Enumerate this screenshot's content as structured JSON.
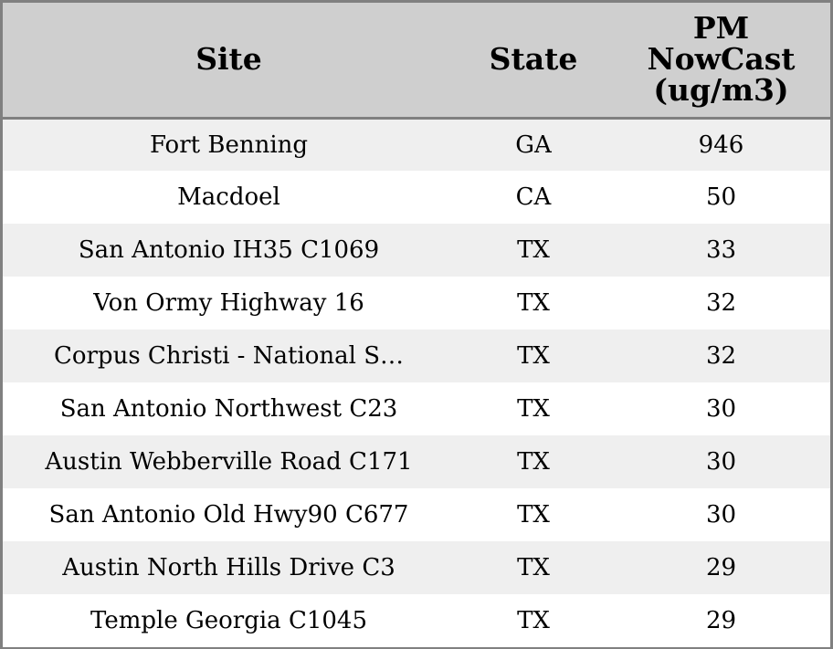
{
  "chart_data": {
    "type": "table",
    "columns": [
      "Site",
      "State",
      "PM NowCast (ug/m3)"
    ],
    "rows": [
      {
        "site": "Fort Benning",
        "state": "GA",
        "pm": 946
      },
      {
        "site": "Macdoel",
        "state": "CA",
        "pm": 50
      },
      {
        "site": "San Antonio IH35 C1069",
        "state": "TX",
        "pm": 33
      },
      {
        "site": "Von Ormy Highway 16",
        "state": "TX",
        "pm": 32
      },
      {
        "site": "Corpus Christi - National S…",
        "state": "TX",
        "pm": 32
      },
      {
        "site": "San Antonio Northwest C23",
        "state": "TX",
        "pm": 30
      },
      {
        "site": "Austin Webberville Road C171",
        "state": "TX",
        "pm": 30
      },
      {
        "site": "San Antonio Old Hwy90 C677",
        "state": "TX",
        "pm": 30
      },
      {
        "site": "Austin North Hills Drive C3",
        "state": "TX",
        "pm": 29
      },
      {
        "site": "Temple Georgia C1045",
        "state": "TX",
        "pm": 29
      }
    ]
  },
  "colors": {
    "header_bg": "#cfcfcf",
    "row_alt_bg": "#efefef",
    "row_bg": "#ffffff",
    "border": "#808080"
  }
}
